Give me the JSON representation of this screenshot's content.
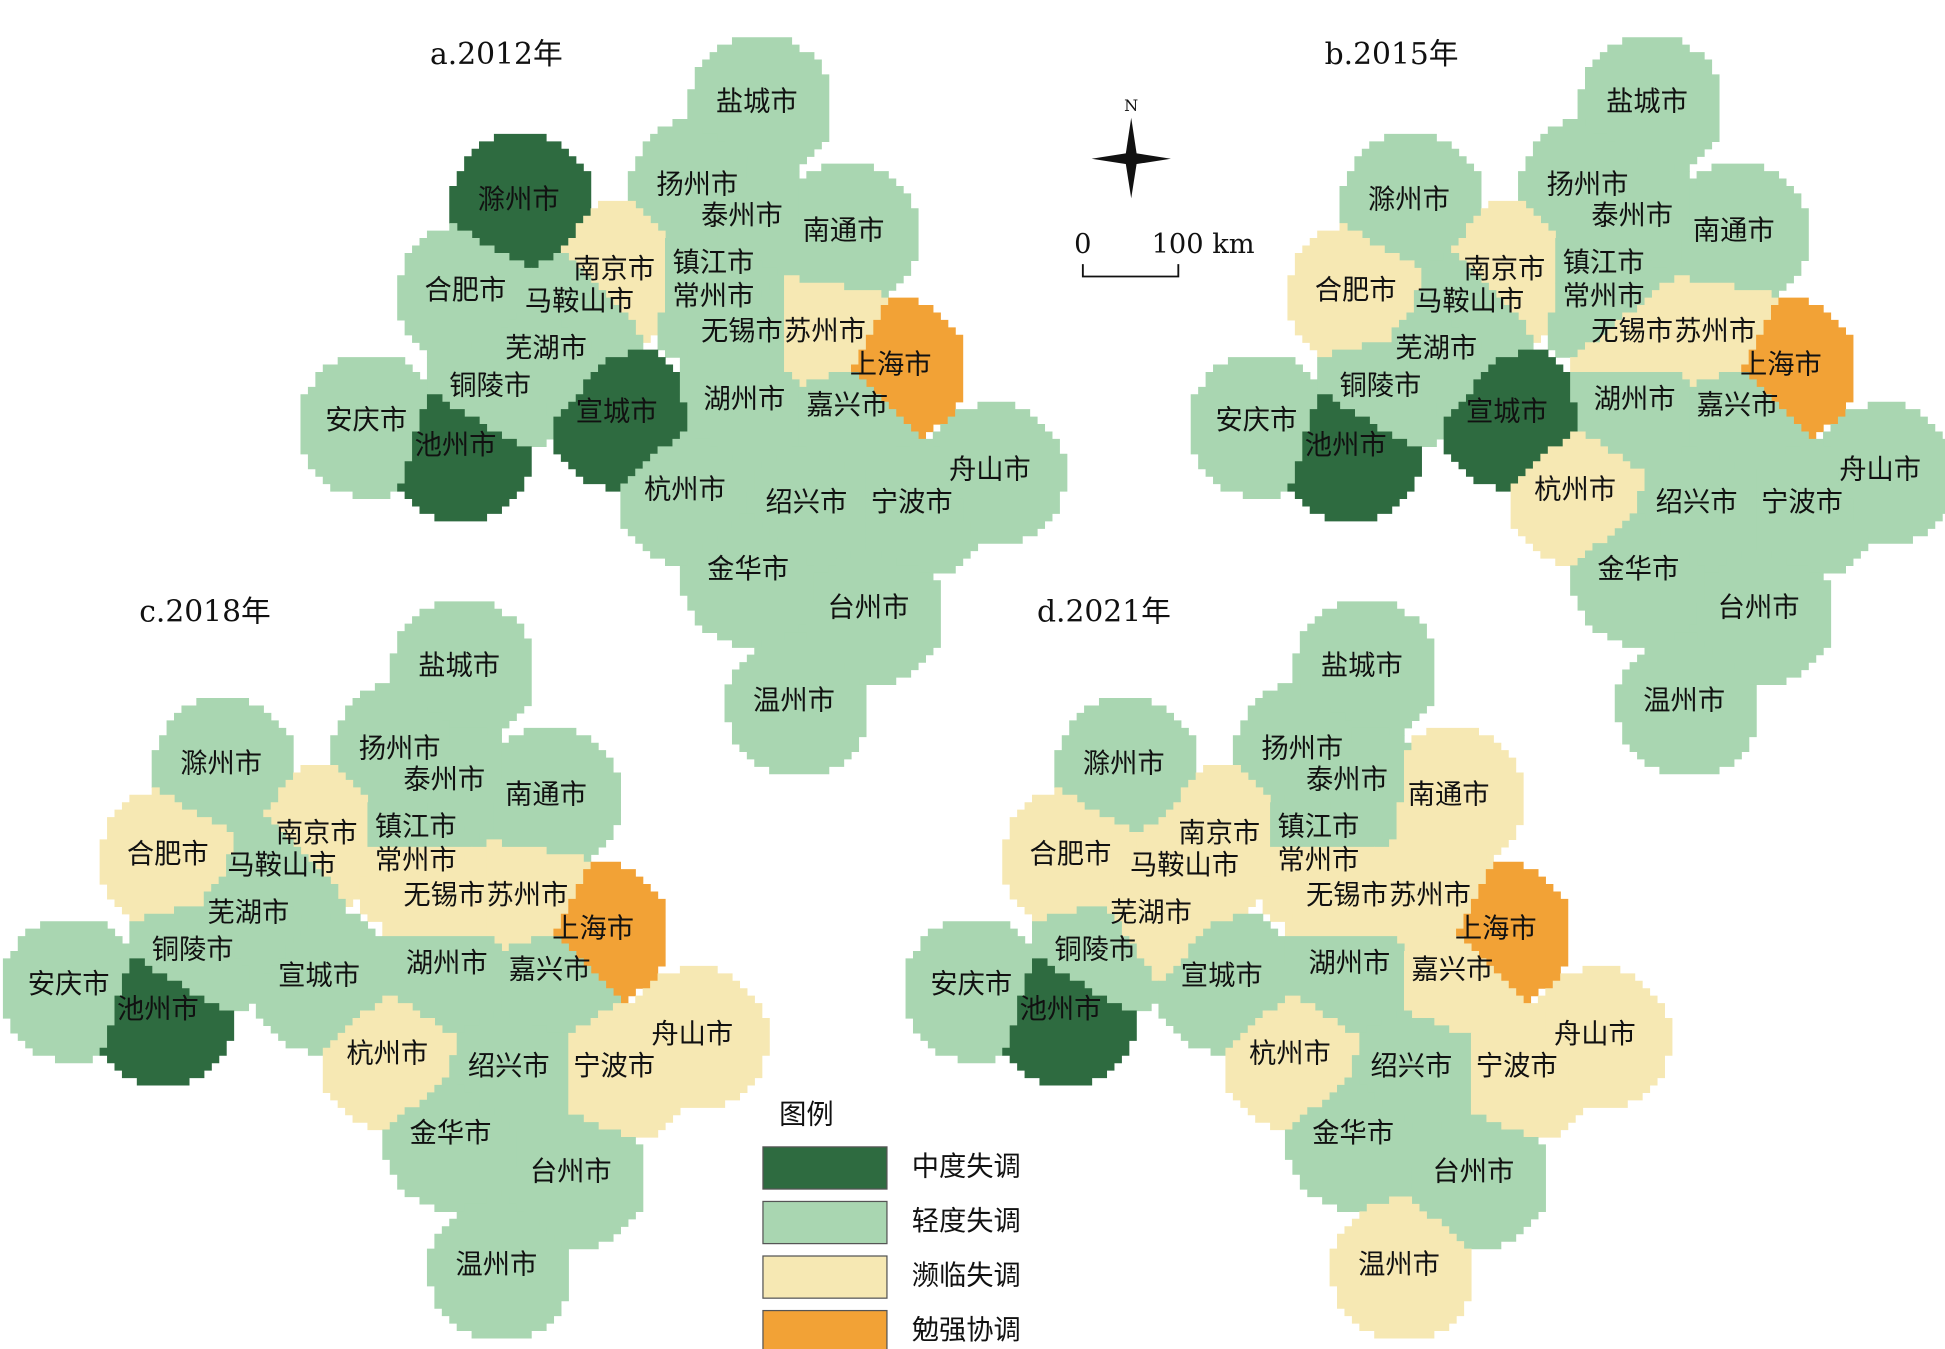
{
  "maps": [
    {
      "title": "a.2012年",
      "levels": [
        "轻度失调",
        "轻度失调",
        "轻度失调",
        "轻度失调",
        "中度失调",
        "濒临失调",
        "轻度失调",
        "轻度失调",
        "轻度失调",
        "轻度失调",
        "轻度失调",
        "濒临失调",
        "勉强协调",
        "轻度失调",
        "轻度失调",
        "轻度失调",
        "中度失调",
        "轻度失调",
        "轻度失调",
        "中度失调",
        "轻度失调",
        "轻度失调",
        "轻度失调",
        "轻度失调",
        "轻度失调",
        "轻度失调",
        "轻度失调"
      ]
    },
    {
      "title": "b.2015年",
      "levels": [
        "轻度失调",
        "轻度失调",
        "轻度失调",
        "轻度失调",
        "轻度失调",
        "濒临失调",
        "轻度失调",
        "濒临失调",
        "轻度失调",
        "轻度失调",
        "濒临失调",
        "濒临失调",
        "勉强协调",
        "轻度失调",
        "轻度失调",
        "轻度失调",
        "中度失调",
        "轻度失调",
        "轻度失调",
        "中度失调",
        "轻度失调",
        "濒临失调",
        "轻度失调",
        "轻度失调",
        "轻度失调",
        "轻度失调",
        "轻度失调"
      ]
    },
    {
      "title": "c.2018年",
      "levels": [
        "轻度失调",
        "轻度失调",
        "轻度失调",
        "轻度失调",
        "轻度失调",
        "濒临失调",
        "轻度失调",
        "濒临失调",
        "轻度失调",
        "濒临失调",
        "濒临失调",
        "濒临失调",
        "勉强协调",
        "轻度失调",
        "轻度失调",
        "轻度失调",
        "轻度失调",
        "轻度失调",
        "轻度失调",
        "中度失调",
        "濒临失调",
        "濒临失调",
        "轻度失调",
        "濒临失调",
        "轻度失调",
        "轻度失调",
        "轻度失调"
      ]
    },
    {
      "title": "d.2021年",
      "levels": [
        "轻度失调",
        "轻度失调",
        "轻度失调",
        "濒临失调",
        "轻度失调",
        "濒临失调",
        "轻度失调",
        "濒临失调",
        "濒临失调",
        "濒临失调",
        "濒临失调",
        "濒临失调",
        "勉强协调",
        "濒临失调",
        "轻度失调",
        "轻度失调",
        "轻度失调",
        "轻度失调",
        "濒临失调",
        "中度失调",
        "濒临失调",
        "濒临失调",
        "轻度失调",
        "濒临失调",
        "轻度失调",
        "轻度失调",
        "濒临失调"
      ]
    }
  ],
  "cities": [
    "盐城市",
    "扬州市",
    "泰州市",
    "南通市",
    "滁州市",
    "南京市",
    "镇江市",
    "合肥市",
    "马鞍山市",
    "常州市",
    "无锡市",
    "苏州市",
    "上海市",
    "芜湖市",
    "铜陵市",
    "安庆市",
    "宣城市",
    "湖州市",
    "嘉兴市",
    "池州市",
    "舟山市",
    "杭州市",
    "绍兴市",
    "宁波市",
    "金华市",
    "台州市",
    "温州市"
  ],
  "legend": {
    "title": "图例",
    "items": [
      {
        "label": "中度失调",
        "color": "#2e6b40"
      },
      {
        "label": "轻度失调",
        "color": "#a9d6b1"
      },
      {
        "label": "濒临失调",
        "color": "#f6e8b3"
      },
      {
        "label": "勉强协调",
        "color": "#f2a236"
      }
    ]
  },
  "compass": {
    "label": "N"
  },
  "scale_bar": {
    "start": "0",
    "end": "100 km"
  }
}
